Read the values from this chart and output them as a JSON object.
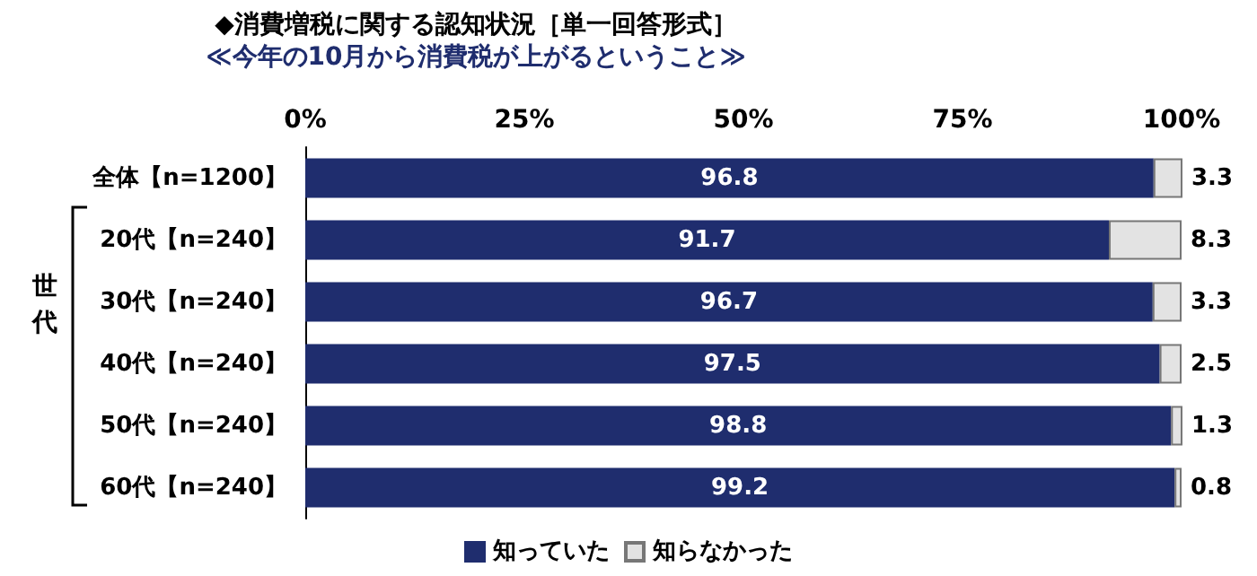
{
  "chart_data": {
    "type": "bar",
    "orientation": "horizontal",
    "stacked": true,
    "title": "◆消費増税に関する認知状況［単一回答形式］",
    "subtitle": "≪今年の10月から消費税が上がるということ≫",
    "categories": [
      "全体【n=1200】",
      "20代【n=240】",
      "30代【n=240】",
      "40代【n=240】",
      "50代【n=240】",
      "60代【n=240】"
    ],
    "series": [
      {
        "name": "知っていた",
        "color": "#1f2d6e",
        "values": [
          96.8,
          91.7,
          96.7,
          97.5,
          98.8,
          99.2
        ]
      },
      {
        "name": "知らなかった",
        "color": "#e3e3e3",
        "values": [
          3.3,
          8.3,
          3.3,
          2.5,
          1.3,
          0.8
        ]
      }
    ],
    "xlim": [
      0,
      100
    ],
    "xticks": [
      {
        "value": 0,
        "label": "0%"
      },
      {
        "value": 25,
        "label": "25%"
      },
      {
        "value": 50,
        "label": "50%"
      },
      {
        "value": 75,
        "label": "75%"
      },
      {
        "value": 100,
        "label": "100%"
      }
    ],
    "annotations": [
      "世代"
    ],
    "data_labels": true,
    "legend": "bottom",
    "grid": false
  }
}
